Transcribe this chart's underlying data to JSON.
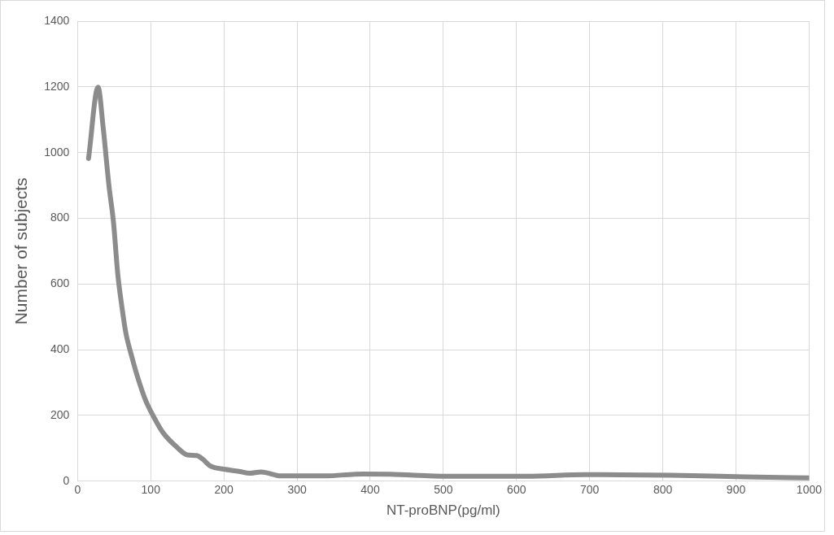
{
  "chart_data": {
    "type": "line",
    "xlabel": "NT-proBNP(pg/ml)",
    "ylabel": "Number of subjects",
    "x": [
      15,
      28,
      35,
      43,
      49,
      55,
      60,
      66,
      74,
      82,
      93,
      105,
      117,
      136,
      150,
      163,
      171,
      181,
      202,
      222,
      235,
      251,
      278,
      337,
      390,
      427,
      507,
      614,
      694,
      811,
      912,
      1000
    ],
    "values": [
      982,
      1199,
      1076,
      897,
      790,
      629,
      540,
      451,
      380,
      317,
      246,
      192,
      147,
      103,
      80,
      78,
      67,
      47,
      36,
      29,
      24,
      28,
      16,
      16,
      22,
      21,
      15,
      15,
      20,
      18,
      13,
      10
    ],
    "color": "#8c8c8c",
    "xlim": [
      0,
      1000
    ],
    "xticks": [
      0,
      100,
      200,
      300,
      400,
      500,
      600,
      700,
      800,
      900,
      1000
    ],
    "ylim": [
      0,
      1400
    ],
    "yticks": [
      0,
      200,
      400,
      600,
      800,
      1000,
      1200,
      1400
    ],
    "grid": true,
    "marker": "none",
    "line_style": "solid"
  }
}
